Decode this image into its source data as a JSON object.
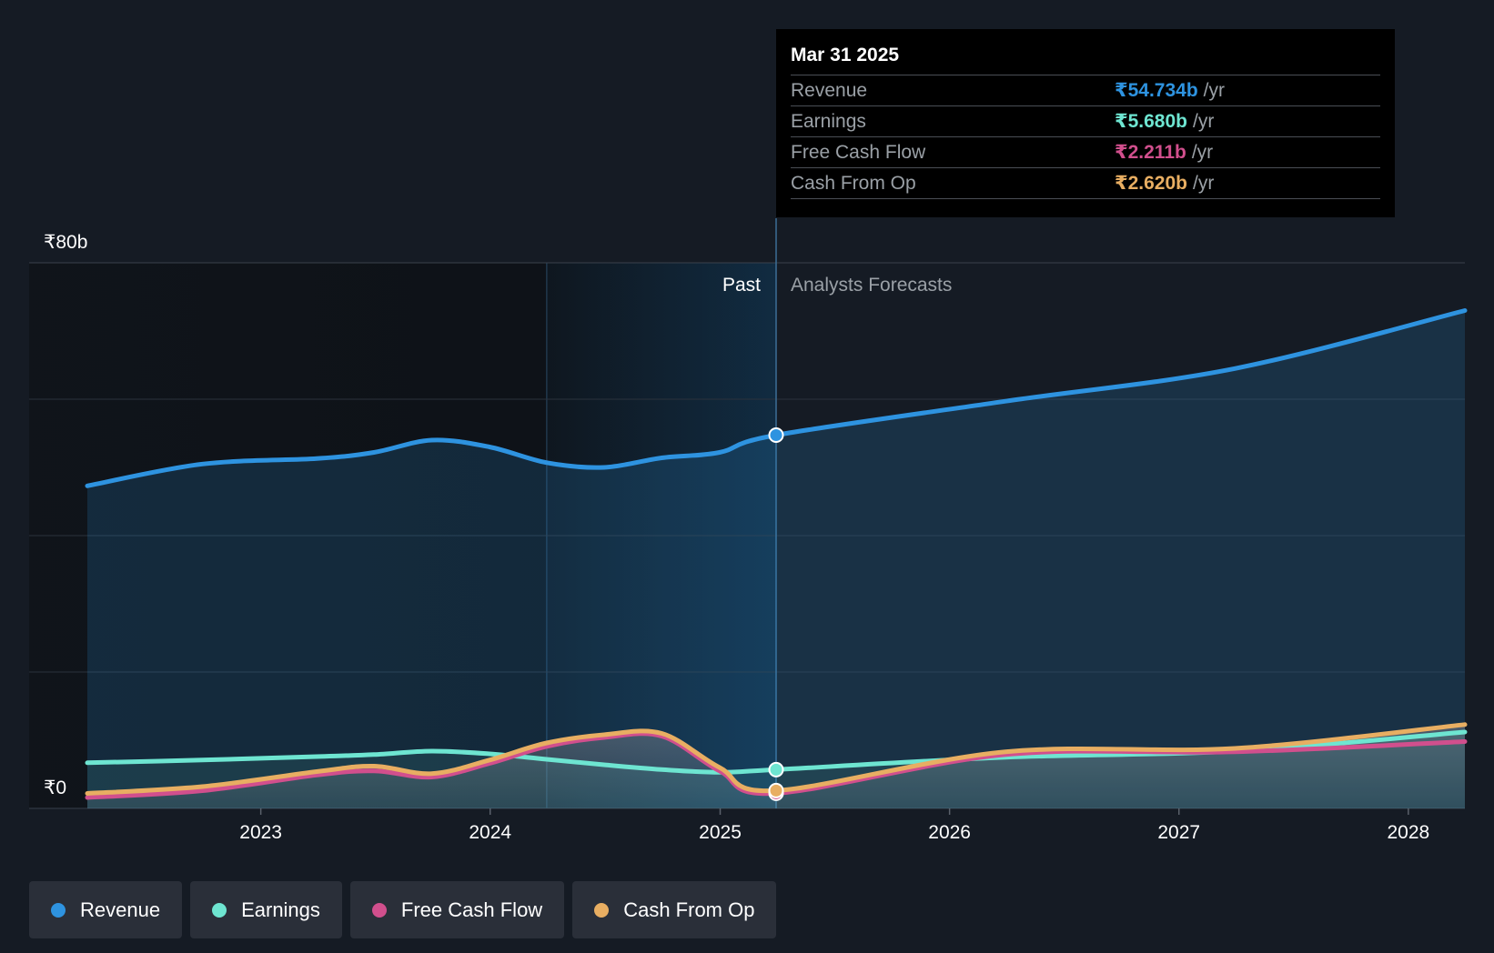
{
  "chart_data": {
    "type": "area",
    "y_unit_labels": {
      "top": "₹80b",
      "bottom": "₹0"
    },
    "ylim": [
      0,
      80
    ],
    "xlim": [
      "2022-03-31",
      "2028-03-31"
    ],
    "x_ticks": [
      "2023",
      "2024",
      "2025",
      "2026",
      "2027",
      "2028"
    ],
    "past_label": "Past",
    "forecast_label": "Analysts Forecasts",
    "split_date": "2025-03-31",
    "grid": true,
    "series": [
      {
        "name": "Revenue",
        "color": "#2e93e0",
        "points": [
          [
            "2022-03-31",
            47.3
          ],
          [
            "2022-09-30",
            50.5
          ],
          [
            "2023-03-31",
            51.3
          ],
          [
            "2023-06-30",
            52.2
          ],
          [
            "2023-09-30",
            54.0
          ],
          [
            "2023-12-31",
            53.0
          ],
          [
            "2024-03-31",
            50.7
          ],
          [
            "2024-06-30",
            50.0
          ],
          [
            "2024-09-30",
            51.4
          ],
          [
            "2024-12-31",
            52.2
          ],
          [
            "2025-03-31",
            54.734
          ],
          [
            "2026-03-31",
            59.7
          ],
          [
            "2027-03-31",
            64.5
          ],
          [
            "2028-03-31",
            73.0
          ]
        ]
      },
      {
        "name": "Earnings",
        "color": "#6ee5d1",
        "points": [
          [
            "2022-03-31",
            6.7
          ],
          [
            "2022-09-30",
            7.1
          ],
          [
            "2023-03-31",
            7.6
          ],
          [
            "2023-06-30",
            7.9
          ],
          [
            "2023-09-30",
            8.4
          ],
          [
            "2023-12-31",
            8.0
          ],
          [
            "2024-03-31",
            7.2
          ],
          [
            "2024-06-30",
            6.4
          ],
          [
            "2024-09-30",
            5.7
          ],
          [
            "2024-12-31",
            5.3
          ],
          [
            "2025-03-31",
            5.68
          ],
          [
            "2026-03-31",
            7.5
          ],
          [
            "2027-03-31",
            8.4
          ],
          [
            "2028-03-31",
            11.2
          ]
        ]
      },
      {
        "name": "Free Cash Flow",
        "color": "#d14f8d",
        "points": [
          [
            "2022-03-31",
            1.6
          ],
          [
            "2022-09-30",
            2.6
          ],
          [
            "2023-03-31",
            4.9
          ],
          [
            "2023-06-30",
            5.5
          ],
          [
            "2023-09-30",
            4.6
          ],
          [
            "2023-12-31",
            6.6
          ],
          [
            "2024-03-31",
            9.1
          ],
          [
            "2024-06-30",
            10.4
          ],
          [
            "2024-09-30",
            10.6
          ],
          [
            "2024-12-31",
            5.5
          ],
          [
            "2025-03-31",
            2.211
          ],
          [
            "2026-03-31",
            7.9
          ],
          [
            "2027-03-31",
            8.3
          ],
          [
            "2028-03-31",
            9.8
          ]
        ]
      },
      {
        "name": "Cash From Op",
        "color": "#e8ae62",
        "points": [
          [
            "2022-03-31",
            2.2
          ],
          [
            "2022-09-30",
            3.2
          ],
          [
            "2023-03-31",
            5.4
          ],
          [
            "2023-06-30",
            6.2
          ],
          [
            "2023-09-30",
            5.1
          ],
          [
            "2023-12-31",
            7.1
          ],
          [
            "2024-03-31",
            9.6
          ],
          [
            "2024-06-30",
            10.8
          ],
          [
            "2024-09-30",
            11.0
          ],
          [
            "2024-12-31",
            6.0
          ],
          [
            "2025-03-31",
            2.62
          ],
          [
            "2026-03-31",
            8.3
          ],
          [
            "2027-03-31",
            8.8
          ],
          [
            "2028-03-31",
            12.3
          ]
        ]
      }
    ]
  },
  "tooltip": {
    "date": "Mar 31 2025",
    "rows": [
      {
        "label": "Revenue",
        "value": "₹54.734b",
        "unit": "/yr",
        "color": "#2e93e0"
      },
      {
        "label": "Earnings",
        "value": "₹5.680b",
        "unit": "/yr",
        "color": "#6ee5d1"
      },
      {
        "label": "Free Cash Flow",
        "value": "₹2.211b",
        "unit": "/yr",
        "color": "#d14f8d"
      },
      {
        "label": "Cash From Op",
        "value": "₹2.620b",
        "unit": "/yr",
        "color": "#e8ae62"
      }
    ]
  },
  "legend": [
    {
      "label": "Revenue",
      "color": "#2e93e0"
    },
    {
      "label": "Earnings",
      "color": "#6ee5d1"
    },
    {
      "label": "Free Cash Flow",
      "color": "#d14f8d"
    },
    {
      "label": "Cash From Op",
      "color": "#e8ae62"
    }
  ]
}
